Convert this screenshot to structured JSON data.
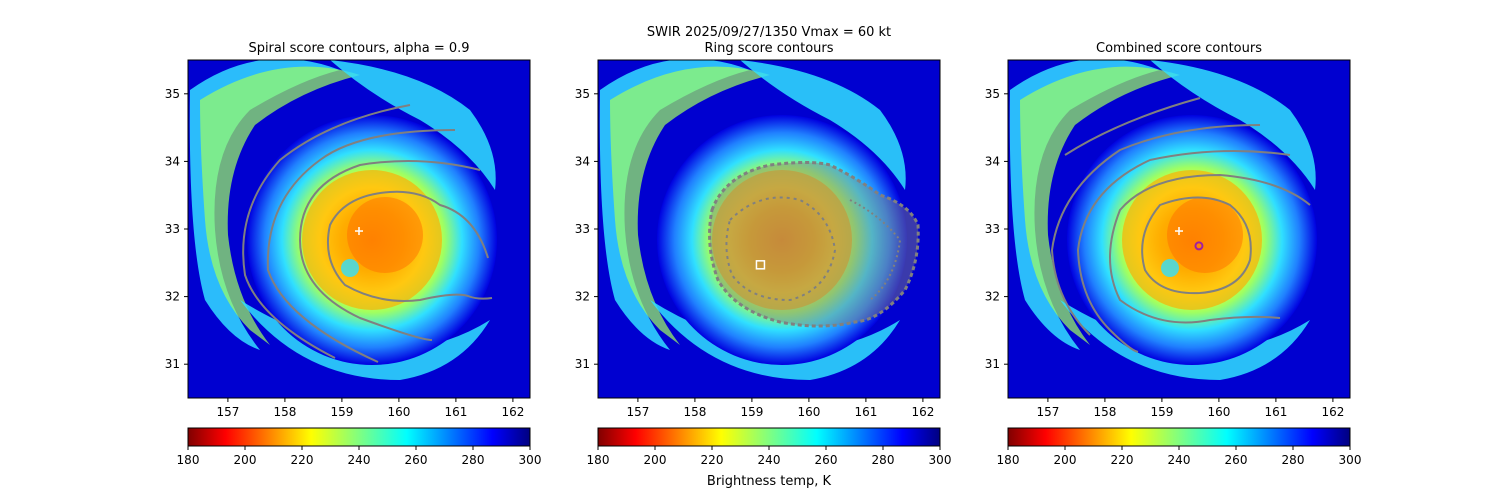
{
  "figure": {
    "suptitle_line1": "SWIR  2025/09/27/1350    Vmax = 60 kt",
    "colorbar_label": "Brightness temp, K"
  },
  "chart_data": [
    {
      "type": "heatmap",
      "title": "Spiral score contours, alpha =  0.9",
      "x_ticks": [
        "157",
        "158",
        "159",
        "160",
        "161",
        "162"
      ],
      "y_ticks": [
        "31",
        "32",
        "33",
        "34",
        "35"
      ],
      "xlim": [
        156.3,
        162.3
      ],
      "ylim": [
        30.5,
        35.5
      ],
      "center_marker": {
        "lon": 159.3,
        "lat": 32.97,
        "symbol": "plus",
        "color": "#ffffff"
      },
      "colorbar": {
        "cmap": "jet_r",
        "min": 180,
        "max": 300,
        "ticks": [
          "180",
          "200",
          "220",
          "240",
          "260",
          "280",
          "300"
        ]
      }
    },
    {
      "type": "heatmap",
      "title": "Ring score contours",
      "x_ticks": [
        "157",
        "158",
        "159",
        "160",
        "161",
        "162"
      ],
      "y_ticks": [
        "31",
        "32",
        "33",
        "34",
        "35"
      ],
      "xlim": [
        156.3,
        162.3
      ],
      "ylim": [
        30.5,
        35.5
      ],
      "center_marker": {
        "lon": 159.15,
        "lat": 32.47,
        "symbol": "square",
        "color": "#ffffff"
      },
      "colorbar": {
        "cmap": "jet_r",
        "min": 180,
        "max": 300,
        "ticks": [
          "180",
          "200",
          "220",
          "240",
          "260",
          "280",
          "300"
        ]
      }
    },
    {
      "type": "heatmap",
      "title": "Combined score contours",
      "x_ticks": [
        "157",
        "158",
        "159",
        "160",
        "161",
        "162"
      ],
      "y_ticks": [
        "31",
        "32",
        "33",
        "34",
        "35"
      ],
      "xlim": [
        156.3,
        162.3
      ],
      "ylim": [
        30.5,
        35.5
      ],
      "center_marker": {
        "lon": 159.3,
        "lat": 32.97,
        "symbol": "plus",
        "color": "#ffffff"
      },
      "combined_marker": {
        "lon": 159.65,
        "lat": 32.75,
        "symbol": "circle",
        "color": "#a020a0"
      },
      "colorbar": {
        "cmap": "jet_r",
        "min": 180,
        "max": 300,
        "ticks": [
          "180",
          "200",
          "220",
          "240",
          "260",
          "280",
          "300"
        ]
      }
    }
  ]
}
